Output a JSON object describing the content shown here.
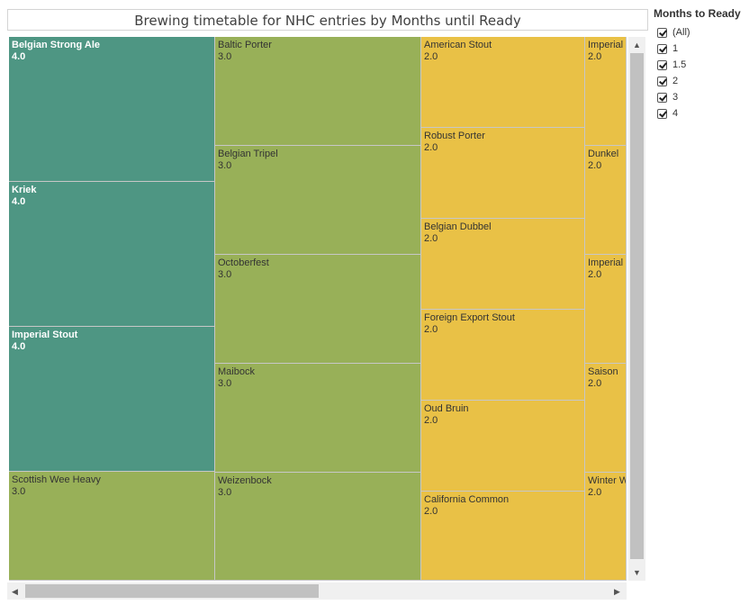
{
  "title": "Brewing timetable for NHC entries by Months until Ready",
  "legend": {
    "title": "Months to Ready",
    "items": [
      "(All)",
      "1",
      "1.5",
      "2",
      "3",
      "4"
    ]
  },
  "colors": {
    "4.0": "#4e9683",
    "3.0": "#98b058",
    "2.0": "#e9c146"
  },
  "chart_data": {
    "type": "treemap",
    "size_measure": "Months until Ready",
    "columns": [
      {
        "cells": [
          {
            "name": "Belgian Strong Ale",
            "value": "4.0"
          },
          {
            "name": "Kriek",
            "value": "4.0"
          },
          {
            "name": "Imperial Stout",
            "value": "4.0"
          },
          {
            "name": "Scottish Wee Heavy",
            "value": "3.0"
          }
        ]
      },
      {
        "cells": [
          {
            "name": "Baltic Porter",
            "value": "3.0"
          },
          {
            "name": "Belgian Tripel",
            "value": "3.0"
          },
          {
            "name": "Octoberfest",
            "value": "3.0"
          },
          {
            "name": "Maibock",
            "value": "3.0"
          },
          {
            "name": "Weizenbock",
            "value": "3.0"
          }
        ]
      },
      {
        "cells": [
          {
            "name": "American Stout",
            "value": "2.0"
          },
          {
            "name": "Robust Porter",
            "value": "2.0"
          },
          {
            "name": "Belgian Dubbel",
            "value": "2.0"
          },
          {
            "name": "Foreign Export Stout",
            "value": "2.0"
          },
          {
            "name": "Oud Bruin",
            "value": "2.0"
          },
          {
            "name": "California Common",
            "value": "2.0"
          }
        ]
      },
      {
        "cells": [
          {
            "name": "Imperial I",
            "value": "2.0"
          },
          {
            "name": "Dunkel",
            "value": "2.0"
          },
          {
            "name": "Imperial I",
            "value": "2.0"
          },
          {
            "name": "Saison",
            "value": "2.0"
          },
          {
            "name": "Winter W",
            "value": "2.0"
          }
        ]
      }
    ]
  }
}
